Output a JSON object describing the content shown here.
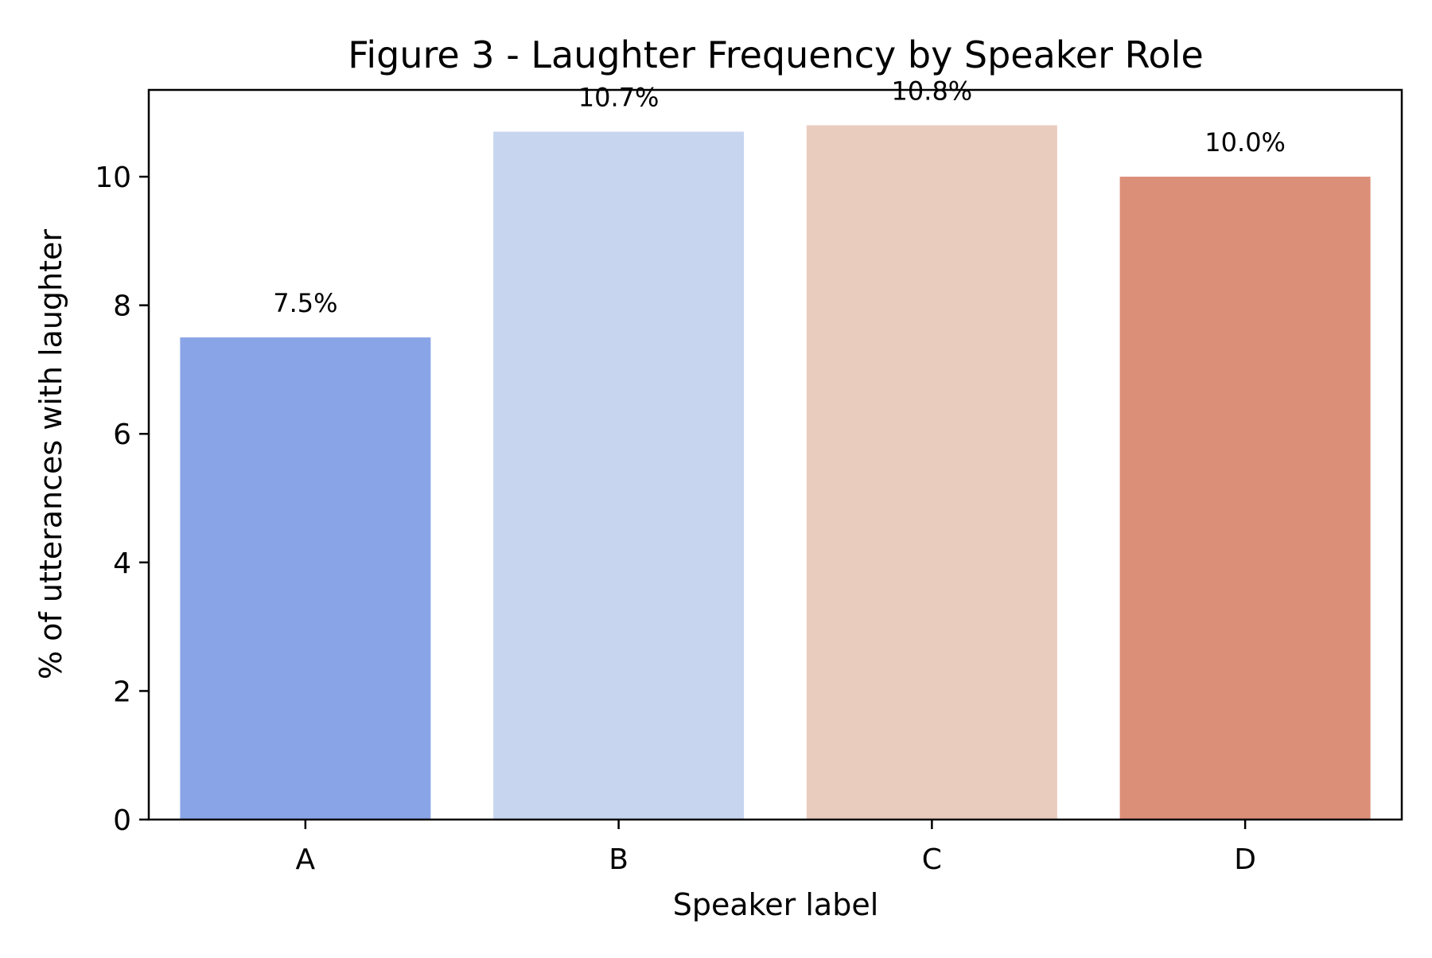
{
  "chart_data": {
    "type": "bar",
    "title": "Figure 3 - Laughter Frequency by Speaker Role",
    "xlabel": "Speaker label",
    "ylabel": "% of utterances with laughter",
    "categories": [
      "A",
      "B",
      "C",
      "D"
    ],
    "values": [
      7.5,
      10.7,
      10.8,
      10.0
    ],
    "data_labels": [
      "7.5%",
      "10.7%",
      "10.8%",
      "10.0%"
    ],
    "colors": [
      "#8aa5e7",
      "#c7d5ef",
      "#eaccbf",
      "#dc8f78"
    ],
    "ylim": [
      0,
      11.35
    ],
    "yticks": [
      0,
      2,
      4,
      6,
      8,
      10
    ],
    "grid": false,
    "legend": "none"
  }
}
